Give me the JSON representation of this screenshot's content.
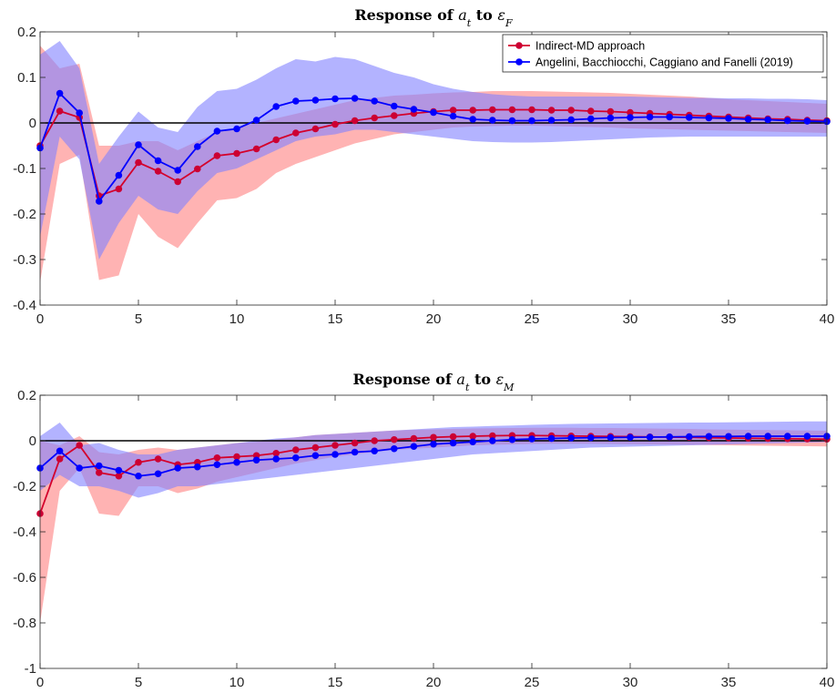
{
  "chart_data": [
    {
      "type": "line",
      "title": {
        "prefix": "Response of ",
        "var": "a",
        "var_sub": "t",
        "mid": " to ",
        "shock": "ε",
        "shock_sub": "F"
      },
      "xlabel": "",
      "ylabel": "",
      "xlim": [
        0,
        40
      ],
      "ylim": [
        -0.4,
        0.2
      ],
      "xticks": [
        "0",
        "5",
        "10",
        "15",
        "20",
        "25",
        "30",
        "35",
        "40"
      ],
      "yticks": [
        "-0.4",
        "-0.3",
        "-0.2",
        "-0.1",
        "0",
        "0.1",
        "0.2"
      ],
      "grid": false,
      "legend": "top-right",
      "x": [
        0,
        1,
        2,
        3,
        4,
        5,
        6,
        7,
        8,
        9,
        10,
        11,
        12,
        13,
        14,
        15,
        16,
        17,
        18,
        19,
        20,
        21,
        22,
        23,
        24,
        25,
        26,
        27,
        28,
        29,
        30,
        31,
        32,
        33,
        34,
        35,
        36,
        37,
        38,
        39,
        40
      ],
      "series": [
        {
          "name": "Indirect-MD approach",
          "color": "#e8000b",
          "values": [
            -0.05,
            0.026,
            0.012,
            -0.16,
            -0.145,
            -0.087,
            -0.106,
            -0.129,
            -0.101,
            -0.072,
            -0.067,
            -0.057,
            -0.037,
            -0.022,
            -0.013,
            -0.003,
            0.005,
            0.011,
            0.016,
            0.021,
            0.025,
            0.028,
            0.028,
            0.029,
            0.029,
            0.029,
            0.028,
            0.028,
            0.026,
            0.025,
            0.023,
            0.021,
            0.019,
            0.017,
            0.015,
            0.013,
            0.011,
            0.009,
            0.008,
            0.006,
            0.005
          ],
          "upper": [
            0.17,
            0.12,
            0.13,
            -0.05,
            -0.05,
            -0.04,
            -0.04,
            -0.06,
            -0.04,
            -0.02,
            -0.01,
            0.0,
            0.01,
            0.02,
            0.03,
            0.04,
            0.05,
            0.055,
            0.06,
            0.062,
            0.065,
            0.067,
            0.068,
            0.07,
            0.07,
            0.07,
            0.069,
            0.068,
            0.067,
            0.066,
            0.064,
            0.062,
            0.06,
            0.058,
            0.055,
            0.052,
            0.05,
            0.048,
            0.046,
            0.044,
            0.042
          ],
          "lower": [
            -0.35,
            -0.09,
            -0.07,
            -0.345,
            -0.335,
            -0.2,
            -0.25,
            -0.275,
            -0.22,
            -0.17,
            -0.165,
            -0.145,
            -0.11,
            -0.09,
            -0.075,
            -0.06,
            -0.045,
            -0.035,
            -0.025,
            -0.02,
            -0.015,
            -0.01,
            -0.008,
            -0.007,
            -0.006,
            -0.006,
            -0.007,
            -0.008,
            -0.009,
            -0.01,
            -0.012,
            -0.013,
            -0.014,
            -0.015,
            -0.016,
            -0.017,
            -0.018,
            -0.019,
            -0.02,
            -0.021,
            -0.022
          ]
        },
        {
          "name": "Angelini, Bacchiocchi, Caggiano and Fanelli (2019)",
          "color": "#0000ff",
          "values": [
            -0.055,
            0.065,
            0.022,
            -0.172,
            -0.115,
            -0.048,
            -0.083,
            -0.104,
            -0.052,
            -0.018,
            -0.013,
            0.006,
            0.036,
            0.048,
            0.05,
            0.053,
            0.054,
            0.048,
            0.037,
            0.03,
            0.023,
            0.015,
            0.008,
            0.006,
            0.005,
            0.005,
            0.006,
            0.007,
            0.009,
            0.011,
            0.012,
            0.013,
            0.013,
            0.012,
            0.011,
            0.01,
            0.008,
            0.007,
            0.005,
            0.004,
            0.003
          ],
          "upper": [
            0.15,
            0.18,
            0.12,
            -0.09,
            -0.03,
            0.025,
            -0.01,
            -0.02,
            0.035,
            0.07,
            0.075,
            0.095,
            0.12,
            0.14,
            0.135,
            0.145,
            0.14,
            0.125,
            0.11,
            0.1,
            0.085,
            0.075,
            0.068,
            0.063,
            0.06,
            0.058,
            0.058,
            0.058,
            0.058,
            0.058,
            0.058,
            0.057,
            0.056,
            0.055,
            0.055,
            0.054,
            0.054,
            0.053,
            0.053,
            0.052,
            0.05
          ],
          "lower": [
            -0.25,
            -0.03,
            -0.08,
            -0.3,
            -0.22,
            -0.16,
            -0.19,
            -0.2,
            -0.15,
            -0.11,
            -0.1,
            -0.08,
            -0.06,
            -0.04,
            -0.03,
            -0.025,
            -0.015,
            -0.015,
            -0.02,
            -0.025,
            -0.03,
            -0.035,
            -0.04,
            -0.042,
            -0.043,
            -0.043,
            -0.042,
            -0.04,
            -0.038,
            -0.036,
            -0.034,
            -0.032,
            -0.031,
            -0.03,
            -0.03,
            -0.03,
            -0.03,
            -0.03,
            -0.03,
            -0.03,
            -0.03
          ]
        }
      ]
    },
    {
      "type": "line",
      "title": {
        "prefix": "Response of ",
        "var": "a",
        "var_sub": "t",
        "mid": " to ",
        "shock": "ε",
        "shock_sub": "M"
      },
      "xlabel": "",
      "ylabel": "",
      "xlim": [
        0,
        40
      ],
      "ylim": [
        -1,
        0.2
      ],
      "xticks": [
        "0",
        "5",
        "10",
        "15",
        "20",
        "25",
        "30",
        "35",
        "40"
      ],
      "yticks": [
        "-1",
        "-0.8",
        "-0.6",
        "-0.4",
        "-0.2",
        "0",
        "0.2"
      ],
      "grid": false,
      "x": [
        0,
        1,
        2,
        3,
        4,
        5,
        6,
        7,
        8,
        9,
        10,
        11,
        12,
        13,
        14,
        15,
        16,
        17,
        18,
        19,
        20,
        21,
        22,
        23,
        24,
        25,
        26,
        27,
        28,
        29,
        30,
        31,
        32,
        33,
        34,
        35,
        36,
        37,
        38,
        39,
        40
      ],
      "series": [
        {
          "name": "Indirect-MD approach",
          "color": "#e8000b",
          "values": [
            -0.32,
            -0.08,
            -0.02,
            -0.14,
            -0.155,
            -0.095,
            -0.08,
            -0.105,
            -0.095,
            -0.075,
            -0.07,
            -0.065,
            -0.055,
            -0.04,
            -0.03,
            -0.02,
            -0.01,
            0.0,
            0.005,
            0.01,
            0.015,
            0.018,
            0.02,
            0.022,
            0.023,
            0.023,
            0.022,
            0.021,
            0.02,
            0.019,
            0.018,
            0.017,
            0.016,
            0.015,
            0.013,
            0.012,
            0.011,
            0.01,
            0.009,
            0.008,
            0.007
          ],
          "upper": [
            0.0,
            -0.02,
            0.02,
            -0.05,
            -0.06,
            -0.04,
            -0.03,
            -0.04,
            -0.03,
            -0.02,
            -0.01,
            -0.005,
            0.005,
            0.015,
            0.025,
            0.03,
            0.035,
            0.04,
            0.045,
            0.048,
            0.05,
            0.052,
            0.054,
            0.055,
            0.056,
            0.057,
            0.057,
            0.057,
            0.056,
            0.056,
            0.055,
            0.054,
            0.053,
            0.052,
            0.05,
            0.049,
            0.048,
            0.047,
            0.046,
            0.045,
            0.044
          ],
          "lower": [
            -0.8,
            -0.22,
            -0.12,
            -0.32,
            -0.33,
            -0.2,
            -0.2,
            -0.23,
            -0.21,
            -0.18,
            -0.16,
            -0.14,
            -0.12,
            -0.1,
            -0.085,
            -0.07,
            -0.06,
            -0.05,
            -0.04,
            -0.035,
            -0.03,
            -0.025,
            -0.02,
            -0.018,
            -0.016,
            -0.014,
            -0.013,
            -0.013,
            -0.013,
            -0.014,
            -0.015,
            -0.016,
            -0.017,
            -0.018,
            -0.019,
            -0.02,
            -0.021,
            -0.022,
            -0.023,
            -0.024,
            -0.025
          ]
        },
        {
          "name": "Angelini, Bacchiocchi, Caggiano and Fanelli (2019)",
          "color": "#0000ff",
          "values": [
            -0.12,
            -0.045,
            -0.12,
            -0.11,
            -0.13,
            -0.155,
            -0.145,
            -0.12,
            -0.115,
            -0.105,
            -0.095,
            -0.085,
            -0.08,
            -0.075,
            -0.065,
            -0.06,
            -0.05,
            -0.045,
            -0.035,
            -0.025,
            -0.015,
            -0.01,
            -0.005,
            0.0,
            0.005,
            0.008,
            0.01,
            0.012,
            0.013,
            0.014,
            0.015,
            0.016,
            0.017,
            0.018,
            0.019,
            0.019,
            0.02,
            0.02,
            0.02,
            0.02,
            0.02
          ],
          "upper": [
            0.02,
            0.08,
            -0.02,
            -0.01,
            -0.04,
            -0.06,
            -0.06,
            -0.04,
            -0.03,
            -0.02,
            -0.01,
            0.0,
            0.01,
            0.015,
            0.025,
            0.03,
            0.035,
            0.04,
            0.045,
            0.05,
            0.055,
            0.06,
            0.062,
            0.065,
            0.067,
            0.07,
            0.072,
            0.074,
            0.075,
            0.076,
            0.077,
            0.078,
            0.079,
            0.08,
            0.08,
            0.081,
            0.082,
            0.083,
            0.084,
            0.085,
            0.085
          ],
          "lower": [
            -0.22,
            -0.15,
            -0.2,
            -0.2,
            -0.22,
            -0.25,
            -0.23,
            -0.2,
            -0.2,
            -0.19,
            -0.18,
            -0.17,
            -0.16,
            -0.15,
            -0.14,
            -0.13,
            -0.12,
            -0.11,
            -0.1,
            -0.09,
            -0.08,
            -0.07,
            -0.06,
            -0.055,
            -0.05,
            -0.045,
            -0.04,
            -0.035,
            -0.03,
            -0.028,
            -0.026,
            -0.024,
            -0.022,
            -0.02,
            -0.018,
            -0.016,
            -0.014,
            -0.012,
            -0.01,
            -0.008,
            -0.006
          ]
        }
      ]
    }
  ]
}
